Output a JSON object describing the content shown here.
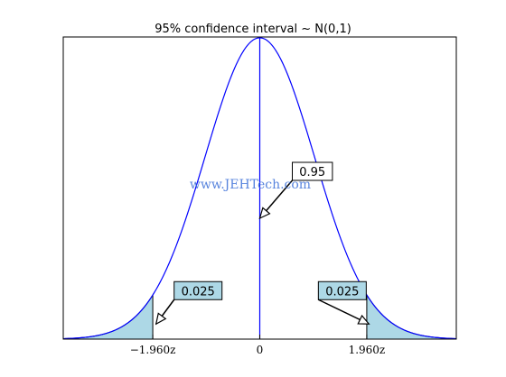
{
  "chart_data": {
    "type": "area",
    "title": "95% confidence interval ~ N(0,1)",
    "xlim": [
      -3.6,
      3.6
    ],
    "ylim": [
      0,
      0.4
    ],
    "grid": false,
    "series": [
      {
        "distribution": "standard normal",
        "mean": 0,
        "sd": 1,
        "line_color": "#0000ff"
      }
    ],
    "shaded_regions": [
      {
        "from": -3.6,
        "to": -1.96,
        "color": "#add8e6"
      },
      {
        "from": 1.96,
        "to": 3.6,
        "color": "#add8e6"
      }
    ],
    "vertical_lines": [
      0
    ],
    "x_ticks": [
      {
        "value": -1.96,
        "label": "−1.960z"
      },
      {
        "value": 0,
        "label": "0"
      },
      {
        "value": 1.96,
        "label": "1.960z"
      }
    ],
    "annotations": [
      {
        "text": "0.95",
        "target_x": 0,
        "target_y": 0.16,
        "box_color": "#ffffff"
      },
      {
        "text": "0.025",
        "target_x": -1.9,
        "target_y": 0.02,
        "box_color": "#add8e6"
      },
      {
        "text": "0.025",
        "target_x": 2.0,
        "target_y": 0.02,
        "box_color": "#add8e6"
      }
    ],
    "watermark": "www.JEHTech.com"
  }
}
